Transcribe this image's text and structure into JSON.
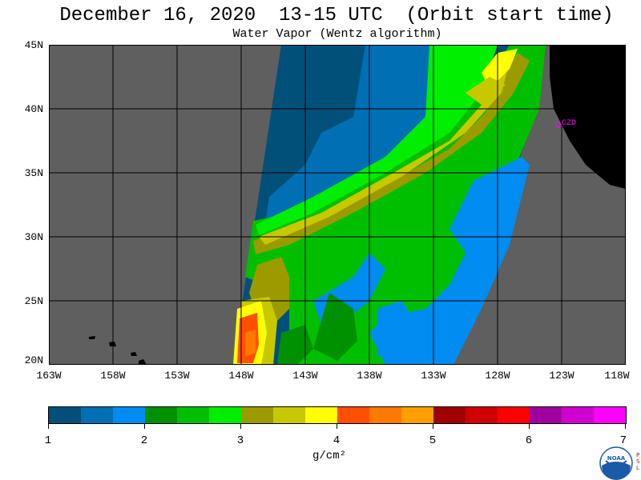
{
  "header": {
    "title": "December 16, 2020  13-15 UTC  (Orbit start time)",
    "subtitle": "Water Vapor (Wentz algorithm)"
  },
  "map": {
    "lat_labels": [
      "45N",
      "40N",
      "35N",
      "30N",
      "25N",
      "20N"
    ],
    "lon_labels": [
      "163W",
      "158W",
      "153W",
      "148W",
      "143W",
      "138W",
      "133W",
      "128W",
      "123W",
      "118W"
    ],
    "station_label": "CZD",
    "colors": {
      "no_data": "#5f5f5f",
      "land": "#000000",
      "grid": "#000000",
      "station": "#ff00ff"
    }
  },
  "colorbar": {
    "tick_labels": [
      "1",
      "2",
      "3",
      "4",
      "5",
      "6",
      "7"
    ],
    "units": "g/cm²",
    "colors": [
      "#00507a",
      "#006fb4",
      "#008cf0",
      "#009100",
      "#00bf00",
      "#00ee00",
      "#9b9b00",
      "#c8c800",
      "#ffff00",
      "#ff5000",
      "#ff7800",
      "#ffa000",
      "#a00000",
      "#d00000",
      "#ff0000",
      "#a000a0",
      "#d000d0",
      "#ff00ff"
    ]
  },
  "logo": {
    "text": "NOAA",
    "side_text": [
      "P",
      "S",
      "L"
    ]
  }
}
